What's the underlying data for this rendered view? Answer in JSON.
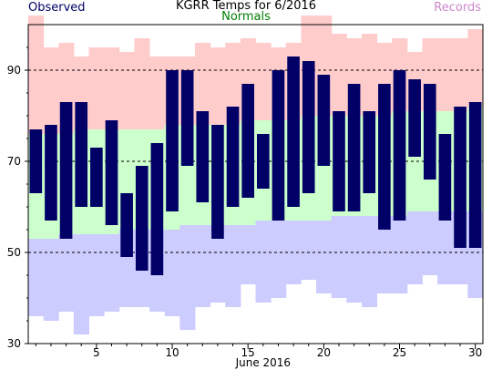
{
  "chart_data": {
    "type": "bar",
    "title": "KGRR Temps for 6/2016",
    "xlabel": "June 2016",
    "ylabel": "",
    "legend": [
      {
        "name": "Observed",
        "color": "#000066"
      },
      {
        "name": "Normals",
        "color": "#008000"
      },
      {
        "name": "Records",
        "color": "#cc88cc"
      }
    ],
    "colors": {
      "observed": "#000066",
      "normal_band": "#ccffcc",
      "record_high_band": "#ffcccc",
      "record_low_band": "#ccccff",
      "grid": "#000000"
    },
    "xlim": [
      0.5,
      30.5
    ],
    "ylim": [
      30,
      100
    ],
    "x_ticks": [
      5,
      10,
      15,
      20,
      25,
      30
    ],
    "y_ticks": [
      30,
      50,
      70,
      90
    ],
    "grid": "dashed horizontal at 50, 70, 90",
    "days": [
      1,
      2,
      3,
      4,
      5,
      6,
      7,
      8,
      9,
      10,
      11,
      12,
      13,
      14,
      15,
      16,
      17,
      18,
      19,
      20,
      21,
      22,
      23,
      24,
      25,
      26,
      27,
      28,
      29,
      30
    ],
    "observed_high": [
      77,
      78,
      83,
      83,
      73,
      79,
      63,
      69,
      74,
      90,
      90,
      81,
      78,
      82,
      87,
      76,
      90,
      93,
      92,
      89,
      81,
      87,
      81,
      87,
      90,
      88,
      87,
      76,
      82,
      83
    ],
    "observed_low": [
      63,
      57,
      53,
      60,
      60,
      56,
      49,
      46,
      45,
      59,
      69,
      61,
      53,
      60,
      62,
      64,
      57,
      60,
      63,
      69,
      59,
      59,
      63,
      55,
      57,
      71,
      66,
      57,
      51,
      51
    ],
    "normal_high": [
      76,
      76,
      76,
      77,
      77,
      77,
      77,
      77,
      77,
      78,
      78,
      78,
      78,
      78,
      79,
      79,
      79,
      79,
      80,
      80,
      80,
      80,
      80,
      80,
      81,
      81,
      81,
      81,
      81,
      82
    ],
    "normal_low": [
      53,
      53,
      54,
      54,
      54,
      54,
      55,
      55,
      55,
      55,
      56,
      56,
      56,
      56,
      56,
      57,
      57,
      57,
      57,
      57,
      58,
      58,
      58,
      58,
      58,
      59,
      59,
      59,
      59,
      59
    ],
    "record_high": [
      102,
      95,
      96,
      93,
      95,
      95,
      94,
      97,
      93,
      93,
      93,
      96,
      95,
      96,
      97,
      96,
      95,
      96,
      102,
      102,
      98,
      97,
      98,
      96,
      97,
      94,
      97,
      97,
      97,
      99
    ],
    "record_low": [
      36,
      35,
      37,
      32,
      36,
      37,
      38,
      38,
      37,
      36,
      33,
      38,
      39,
      38,
      43,
      39,
      40,
      43,
      44,
      41,
      40,
      39,
      38,
      41,
      41,
      43,
      45,
      43,
      43,
      40
    ]
  }
}
